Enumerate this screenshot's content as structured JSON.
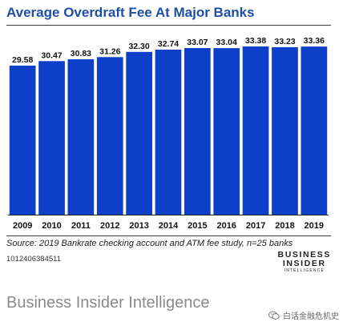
{
  "chart_data": {
    "type": "bar",
    "title": "Average Overdraft Fee At Major Banks",
    "categories": [
      "2009",
      "2010",
      "2011",
      "2012",
      "2013",
      "2014",
      "2015",
      "2016",
      "2017",
      "2018",
      "2019"
    ],
    "values": [
      29.58,
      30.47,
      30.83,
      31.26,
      32.3,
      32.74,
      33.07,
      33.04,
      33.38,
      33.23,
      33.36
    ],
    "data_labels": [
      "29.58",
      "30.47",
      "30.83",
      "31.26",
      "32.30",
      "32.74",
      "33.07",
      "33.04",
      "33.38",
      "33.23",
      "33.36"
    ],
    "xlabel": "",
    "ylabel": "",
    "grid": false,
    "bar_color": "#0d3fc9"
  },
  "source": "Source: 2019 Bankrate checking account and ATM fee study, n=25 banks",
  "chart_code": "1012406384511",
  "logo": {
    "line1": "BUSINESS",
    "line2": "INSIDER",
    "line3": "INTELLIGENCE"
  },
  "footer_brand": "Business Insider Intelligence",
  "watermark": {
    "text": "白话金融危机史",
    "icon": "wechat-icon"
  },
  "colors": {
    "title": "#1c4fa8",
    "bars": "#0d3fc9"
  }
}
